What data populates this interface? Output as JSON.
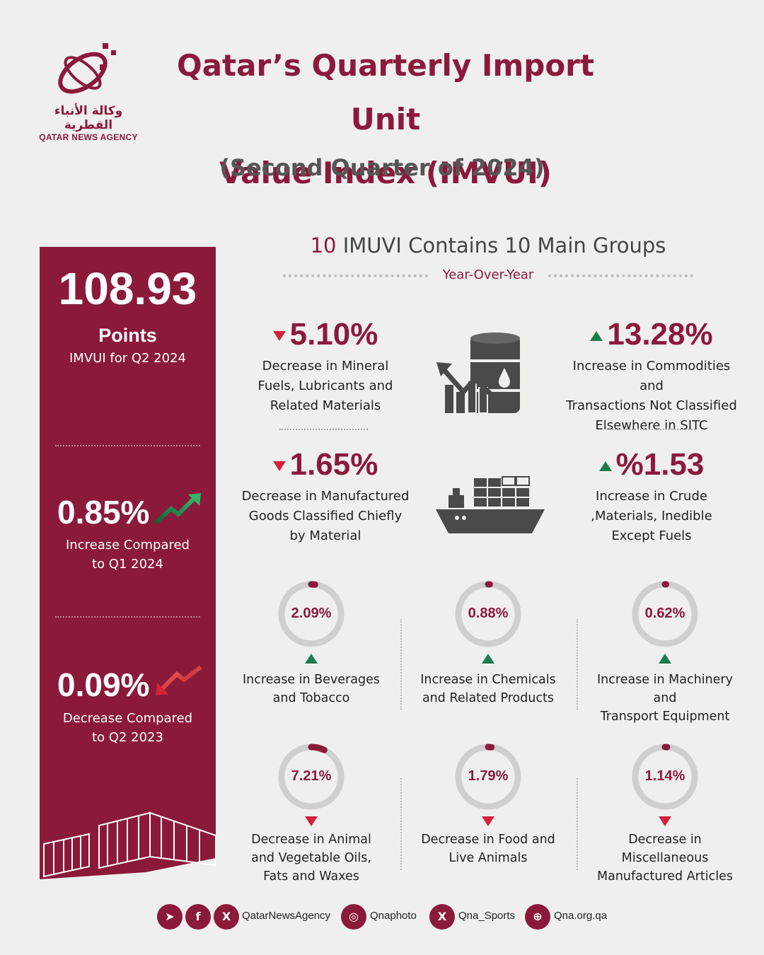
{
  "brand": {
    "arabic_name": "وكالة الأنباء القطرية",
    "english_name": "QATAR NEWS AGENCY",
    "color": "#8b1a3a"
  },
  "title": {
    "line1": "Qatar’s Quarterly Import Unit",
    "line2": "Value Index (IMVUI)",
    "subtitle": "(Second Quarter of 2024)"
  },
  "sidebar": {
    "index_value": "108.93",
    "index_unit": "Points",
    "index_caption": "IMVUI for Q2 2024",
    "qoq_value": "0.85%",
    "qoq_line1": "Increase Compared",
    "qoq_line2": "to Q1 2024",
    "yoy_value": "0.09%",
    "yoy_line1": "Decrease Compared",
    "yoy_line2": "to Q2 2023"
  },
  "groups": {
    "heading_num": "10",
    "heading_text": "IMUVI Contains 10 Main Groups",
    "period": "Year-Over-Year"
  },
  "kpis": [
    {
      "value": "5.10%",
      "direction": "down",
      "lines": [
        "Decrease in Mineral",
        "Fuels, Lubricants and",
        "Related Materials"
      ],
      "icon": "oil-barrel-chart-icon"
    },
    {
      "value": "13.28%",
      "direction": "up",
      "lines": [
        "Increase in Commodities and",
        "Transactions Not Classified",
        "Elsewhere in SITC"
      ]
    },
    {
      "value": "1.65%",
      "direction": "down",
      "lines": [
        "Decrease in Manufactured",
        "Goods Classified Chiefly",
        "by Material"
      ],
      "icon": "cargo-ship-icon"
    },
    {
      "value": "%1.53",
      "direction": "up",
      "lines": [
        "Increase in Crude",
        ",Materials, Inedible",
        "Except Fuels"
      ]
    }
  ],
  "donuts": [
    {
      "pct_label": "2.09%",
      "pct": 2.09,
      "direction": "up",
      "lines": [
        "Increase in Beverages",
        "and Tobacco"
      ]
    },
    {
      "pct_label": "0.88%",
      "pct": 0.88,
      "direction": "up",
      "lines": [
        "Increase in Chemicals",
        "and Related Products"
      ]
    },
    {
      "pct_label": "0.62%",
      "pct": 0.62,
      "direction": "up",
      "lines": [
        "Increase in Machinery and",
        "Transport Equipment"
      ]
    },
    {
      "pct_label": "7.21%",
      "pct": 7.21,
      "direction": "down",
      "lines": [
        "Decrease in Animal",
        "and Vegetable Oils,",
        "Fats and Waxes"
      ]
    },
    {
      "pct_label": "1.79%",
      "pct": 1.79,
      "direction": "down",
      "lines": [
        "Decrease in Food and",
        "Live Animals"
      ]
    },
    {
      "pct_label": "1.14%",
      "pct": 1.14,
      "direction": "down",
      "lines": [
        "Decrease in Miscellaneous",
        "Manufactured Articles"
      ]
    }
  ],
  "footer": {
    "handle_main": "QatarNewsAgency",
    "handle_photo": "Qnaphoto",
    "handle_sports": "Qna_Sports",
    "website": "Qna.org.qa"
  },
  "colors": {
    "up": "#1d7c4e",
    "down": "#d3223b",
    "track": "#cfcfcf"
  }
}
